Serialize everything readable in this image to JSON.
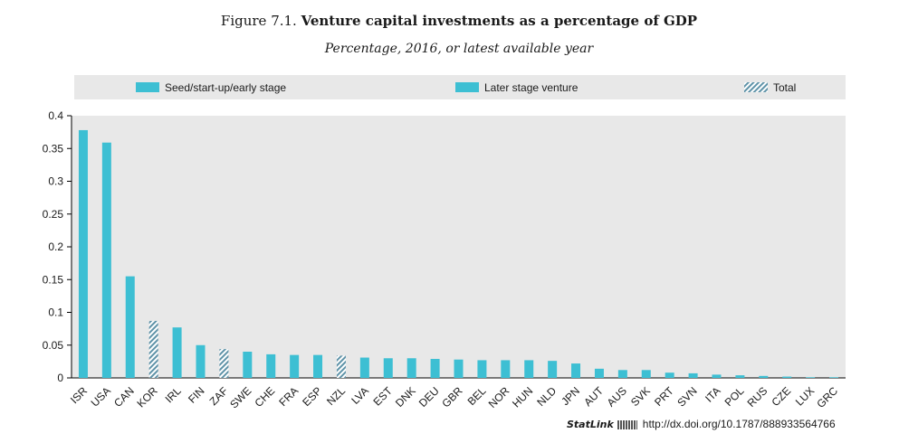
{
  "figure": {
    "number": "Figure 7.1.",
    "title": "Venture capital investments as a percentage of GDP",
    "subtitle": "Percentage, 2016, or latest available year"
  },
  "statlink": {
    "brand": "StatLink",
    "url": "http://dx.doi.org/10.1787/888933564766"
  },
  "chart_data": {
    "type": "bar",
    "legend": [
      {
        "name": "Seed/start-up/early stage",
        "style": "solid"
      },
      {
        "name": "Later stage venture",
        "style": "solid"
      },
      {
        "name": "Total",
        "style": "hatched"
      }
    ],
    "legend_position": "top",
    "ylim": [
      0,
      0.4
    ],
    "yticks": [
      "0",
      "0.05",
      "0.1",
      "0.15",
      "0.2",
      "0.25",
      "0.3",
      "0.35",
      "0.4"
    ],
    "grid": false,
    "colors": {
      "bar": "#3dbfd3",
      "hatch": "#5f93a8",
      "legend_bg": "#e8e8e8"
    },
    "categories": [
      "ISR",
      "USA",
      "CAN",
      "KOR",
      "IRL",
      "FIN",
      "ZAF",
      "SWE",
      "CHE",
      "FRA",
      "ESP",
      "NZL",
      "LVA",
      "EST",
      "DNK",
      "DEU",
      "GBR",
      "BEL",
      "NOR",
      "HUN",
      "NLD",
      "JPN",
      "AUT",
      "AUS",
      "SVK",
      "PRT",
      "SVN",
      "ITA",
      "POL",
      "RUS",
      "CZE",
      "LUX",
      "GRC"
    ],
    "values": [
      0.378,
      0.359,
      0.155,
      0.087,
      0.077,
      0.05,
      0.044,
      0.04,
      0.036,
      0.035,
      0.035,
      0.034,
      0.031,
      0.03,
      0.03,
      0.029,
      0.028,
      0.027,
      0.027,
      0.027,
      0.026,
      0.022,
      0.014,
      0.012,
      0.012,
      0.008,
      0.007,
      0.005,
      0.004,
      0.003,
      0.002,
      0.001,
      0.001
    ],
    "total_only": [
      "KOR",
      "ZAF",
      "NZL"
    ]
  }
}
